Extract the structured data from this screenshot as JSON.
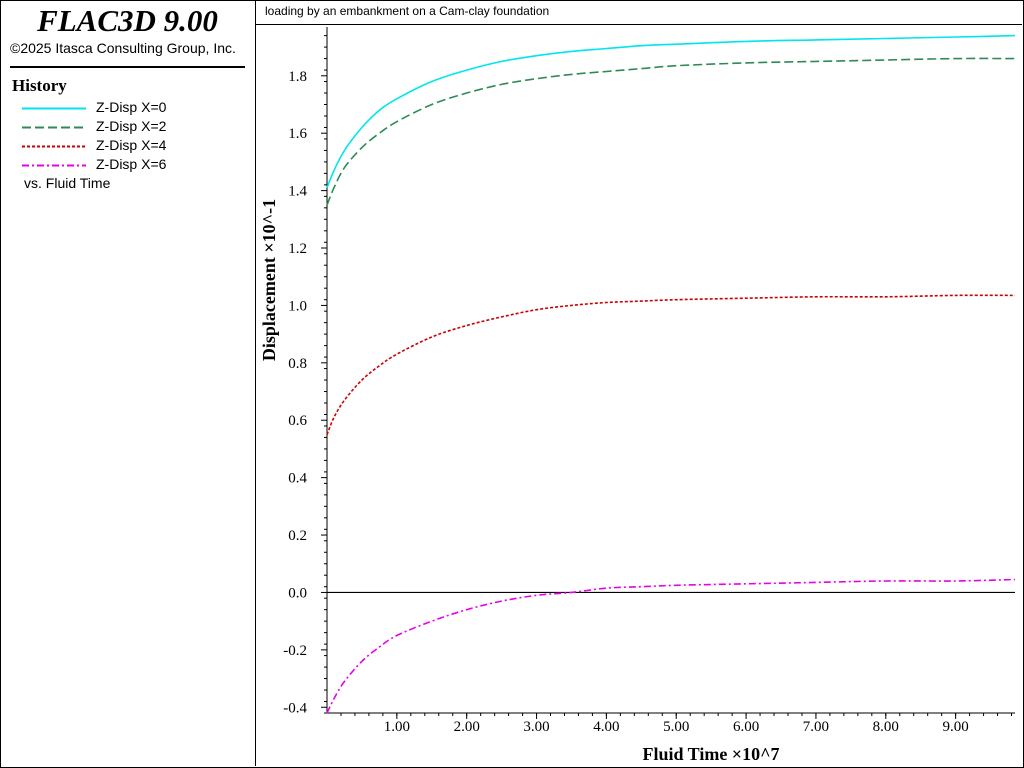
{
  "app": {
    "title": "FLAC3D 9.00",
    "copyright": "©2025 Itasca Consulting Group, Inc."
  },
  "legend": {
    "heading": "History",
    "versus": "vs. Fluid Time"
  },
  "plot": {
    "caption": "loading by an embankment on a Cam-clay foundation"
  },
  "chart_data": {
    "type": "line",
    "title": "",
    "xlabel": "Fluid Time ×10^7",
    "ylabel": "Displacement ×10^-1",
    "xlim": [
      0,
      9.85
    ],
    "ylim": [
      -0.42,
      1.97
    ],
    "x_ticks": [
      1,
      2,
      3,
      4,
      5,
      6,
      7,
      8,
      9
    ],
    "x_tick_labels": [
      "1.00",
      "2.00",
      "3.00",
      "4.00",
      "5.00",
      "6.00",
      "7.00",
      "8.00",
      "9.00"
    ],
    "y_ticks": [
      -0.4,
      -0.2,
      0,
      0.2,
      0.4,
      0.6,
      0.8,
      1.0,
      1.2,
      1.4,
      1.6,
      1.8
    ],
    "y_tick_labels": [
      "-0.4",
      "-0.2",
      "0.0",
      "0.2",
      "0.4",
      "0.6",
      "0.8",
      "1.0",
      "1.2",
      "1.4",
      "1.6",
      "1.8"
    ],
    "zero_line": true,
    "grid": false,
    "legend_position": "left-panel",
    "x": [
      0,
      0.1,
      0.25,
      0.5,
      0.75,
      1.0,
      1.5,
      2.0,
      2.5,
      3.0,
      3.5,
      4.0,
      4.5,
      5.0,
      6.0,
      7.0,
      8.0,
      9.0,
      9.85
    ],
    "series": [
      {
        "name": "Z-Disp X=0",
        "color": "#00e5ee",
        "dash": "solid",
        "values": [
          1.41,
          1.47,
          1.54,
          1.62,
          1.68,
          1.72,
          1.78,
          1.82,
          1.85,
          1.87,
          1.885,
          1.895,
          1.905,
          1.91,
          1.92,
          1.925,
          1.93,
          1.935,
          1.94
        ]
      },
      {
        "name": "Z-Disp X=2",
        "color": "#2e8b57",
        "dash": "long-dash",
        "values": [
          1.35,
          1.41,
          1.48,
          1.55,
          1.6,
          1.64,
          1.7,
          1.74,
          1.77,
          1.79,
          1.805,
          1.815,
          1.825,
          1.835,
          1.845,
          1.85,
          1.855,
          1.86,
          1.86
        ]
      },
      {
        "name": "Z-Disp X=4",
        "color": "#cc0000",
        "dash": "short-dash",
        "values": [
          0.55,
          0.61,
          0.67,
          0.74,
          0.79,
          0.83,
          0.89,
          0.93,
          0.96,
          0.985,
          1.0,
          1.01,
          1.015,
          1.02,
          1.025,
          1.03,
          1.03,
          1.035,
          1.035
        ]
      },
      {
        "name": "Z-Disp X=6",
        "color": "#e800e8",
        "dash": "dash-dot",
        "values": [
          -0.42,
          -0.37,
          -0.31,
          -0.24,
          -0.19,
          -0.15,
          -0.1,
          -0.06,
          -0.03,
          -0.01,
          0.0,
          0.015,
          0.02,
          0.025,
          0.03,
          0.035,
          0.04,
          0.04,
          0.045
        ]
      }
    ]
  }
}
